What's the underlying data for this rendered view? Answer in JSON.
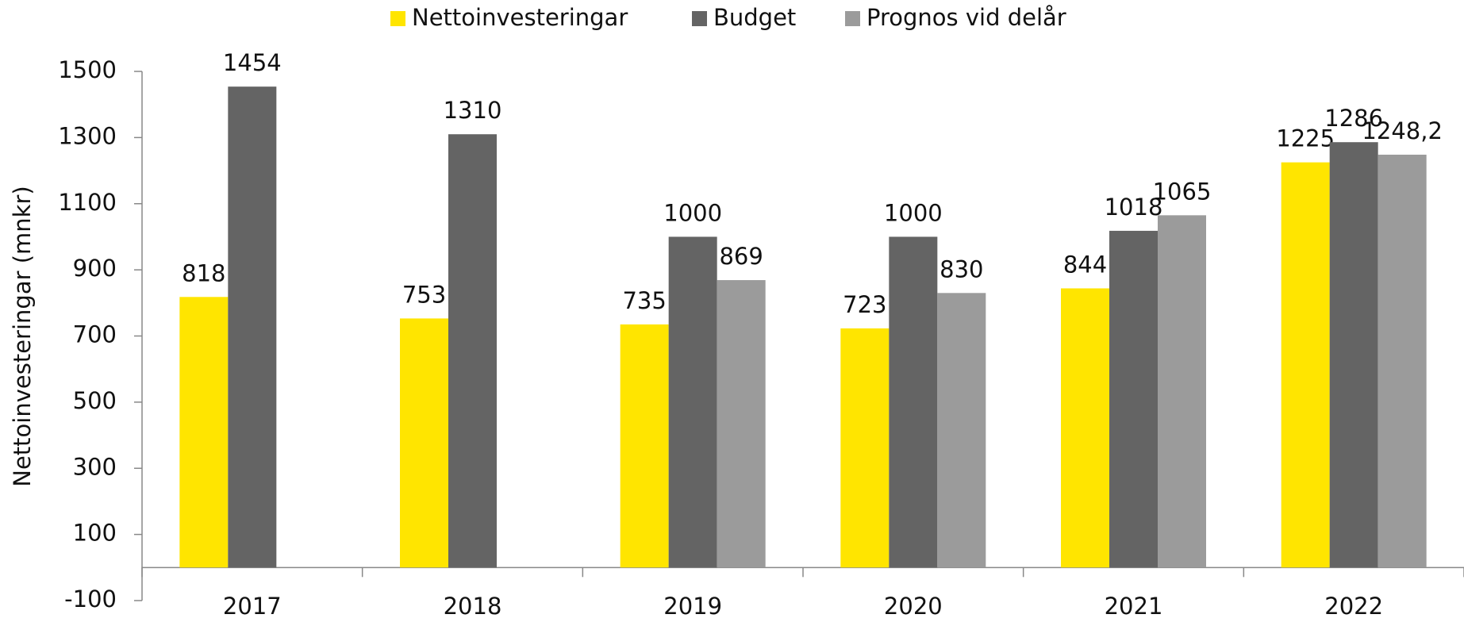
{
  "chart_data": {
    "type": "bar",
    "y_label": "Nettoinvesteringar (mnkr)",
    "categories": [
      "2017",
      "2018",
      "2019",
      "2020",
      "2021",
      "2022"
    ],
    "series": [
      {
        "name": "Nettoinvesteringar",
        "color": "#ffe500",
        "values": [
          818,
          753,
          735,
          723,
          844,
          1225
        ]
      },
      {
        "name": "Budget",
        "color": "#646464",
        "values": [
          1454,
          1310,
          1000,
          1000,
          1018,
          1286
        ]
      },
      {
        "name": "Prognos vid delår",
        "color": "#9b9b9b",
        "values": [
          null,
          null,
          869,
          830,
          1065,
          1248.2
        ],
        "value_labels": [
          null,
          null,
          "869",
          "830",
          "1065",
          "1248,2"
        ]
      }
    ],
    "ylim": [
      -100,
      1500
    ],
    "yticks": [
      -100,
      100,
      300,
      500,
      700,
      900,
      1100,
      1300,
      1500
    ],
    "grid": false,
    "legend": "top"
  }
}
